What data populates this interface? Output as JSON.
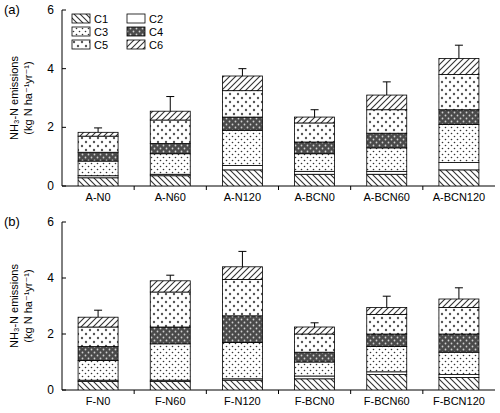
{
  "chart_data": [
    {
      "type": "bar",
      "title": "(a)",
      "stacked": true,
      "legend": "upper left",
      "ylabel": [
        "NH₃-N emissions",
        "(kg N ha⁻¹yr⁻¹)"
      ],
      "categories": [
        "A-N0",
        "A-N60",
        "A-N120",
        "A-BCN0",
        "A-BCN60",
        "A-BCN120"
      ],
      "ylim": [
        0,
        6
      ],
      "yticks": [
        0,
        2,
        4,
        6
      ],
      "series": [
        {
          "name": "C1",
          "values": [
            0.28,
            0.35,
            0.55,
            0.4,
            0.4,
            0.55
          ]
        },
        {
          "name": "C2",
          "values": [
            0.07,
            0.05,
            0.15,
            0.1,
            0.1,
            0.25
          ]
        },
        {
          "name": "C3",
          "values": [
            0.5,
            0.7,
            1.2,
            0.6,
            0.8,
            1.3
          ]
        },
        {
          "name": "C4",
          "values": [
            0.3,
            0.35,
            0.45,
            0.4,
            0.5,
            0.5
          ]
        },
        {
          "name": "C5",
          "values": [
            0.55,
            0.8,
            0.9,
            0.65,
            0.8,
            1.2
          ]
        },
        {
          "name": "C6",
          "values": [
            0.13,
            0.3,
            0.5,
            0.2,
            0.5,
            0.55
          ]
        }
      ],
      "errors": [
        0.15,
        0.5,
        0.25,
        0.25,
        0.45,
        0.45
      ]
    },
    {
      "type": "bar",
      "title": "(b)",
      "stacked": true,
      "ylabel": [
        "NH₃-N emissions",
        "(kg N ha⁻¹yr⁻¹)"
      ],
      "categories": [
        "F-N0",
        "F-N60",
        "F-N120",
        "F-BCN0",
        "F-BCN60",
        "F-BCN120"
      ],
      "ylim": [
        0,
        6
      ],
      "yticks": [
        0,
        2,
        4,
        6
      ],
      "series": [
        {
          "name": "C1",
          "values": [
            0.3,
            0.3,
            0.35,
            0.4,
            0.55,
            0.45
          ]
        },
        {
          "name": "C2",
          "values": [
            0.05,
            0.05,
            0.05,
            0.1,
            0.1,
            0.1
          ]
        },
        {
          "name": "C3",
          "values": [
            0.7,
            1.3,
            1.3,
            0.5,
            0.9,
            0.8
          ]
        },
        {
          "name": "C4",
          "values": [
            0.5,
            0.6,
            0.95,
            0.35,
            0.45,
            0.65
          ]
        },
        {
          "name": "C5",
          "values": [
            0.7,
            1.25,
            1.3,
            0.65,
            0.7,
            0.95
          ]
        },
        {
          "name": "C6",
          "values": [
            0.35,
            0.4,
            0.45,
            0.25,
            0.25,
            0.3
          ]
        }
      ],
      "errors": [
        0.25,
        0.2,
        0.55,
        0.15,
        0.4,
        0.4
      ]
    }
  ]
}
